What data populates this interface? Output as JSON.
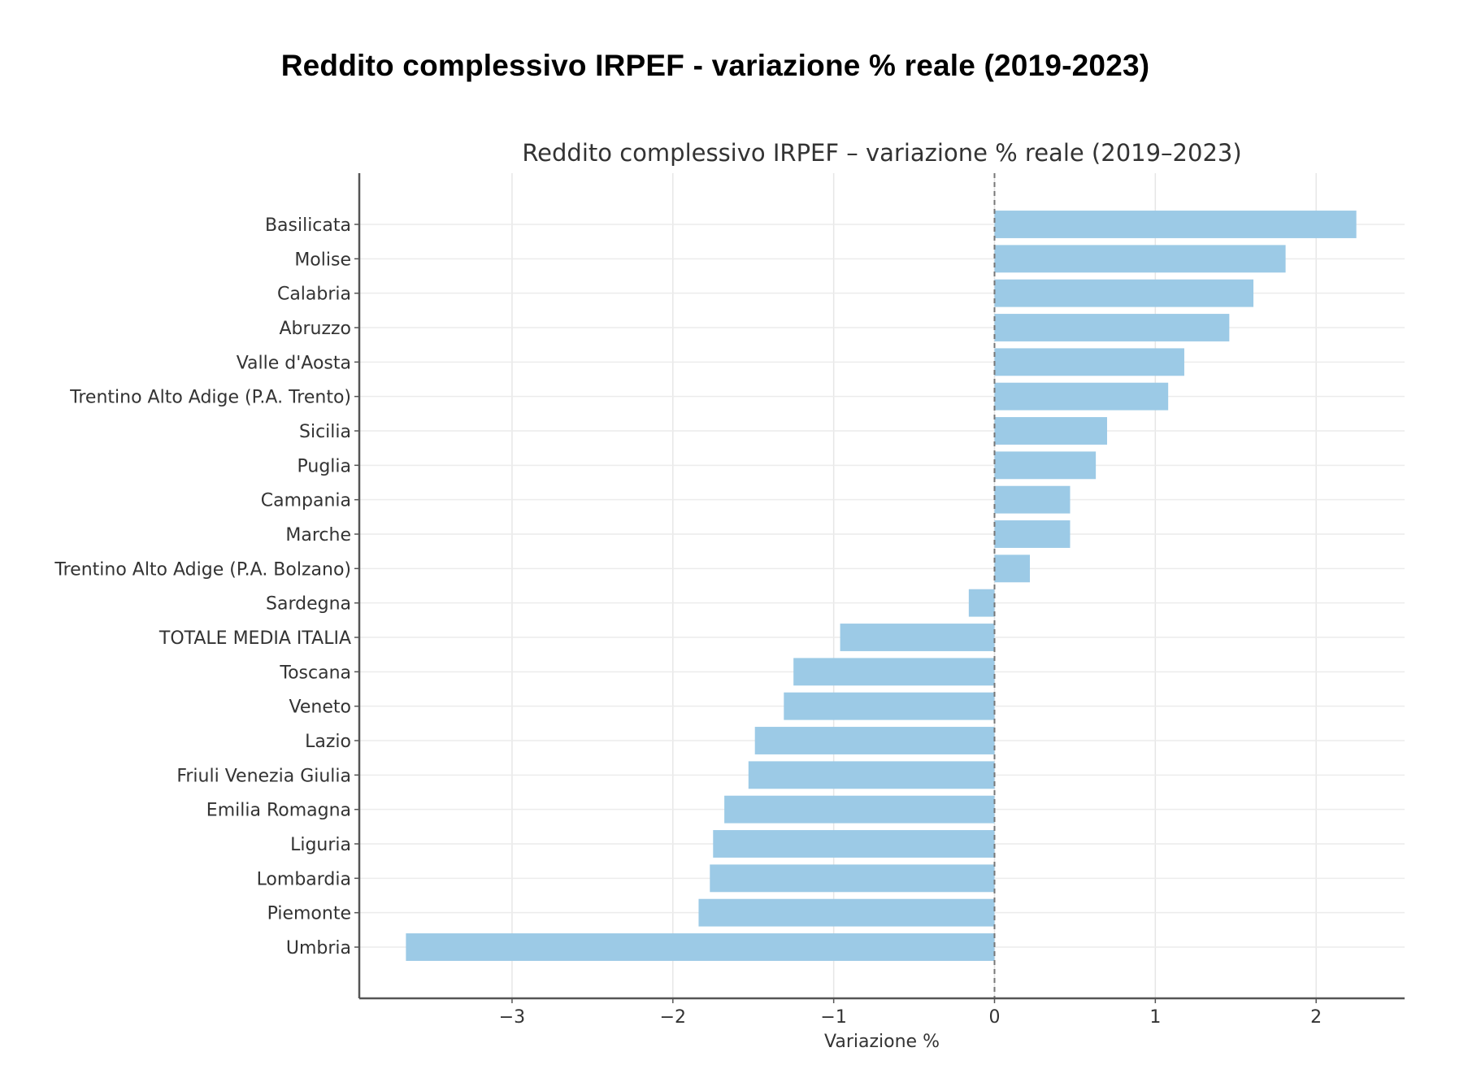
{
  "page": {
    "title": "Reddito complessivo IRPEF - variazione % reale (2019-2023)"
  },
  "chart_data": {
    "type": "bar",
    "orientation": "horizontal",
    "title": "Reddito complessivo IRPEF – variazione % reale (2019–2023)",
    "xlabel": "Variazione %",
    "ylabel": "",
    "xlim": [
      -3.95,
      2.55
    ],
    "xticks": [
      -3,
      -2,
      -1,
      0,
      1,
      2
    ],
    "xtick_labels": [
      "−3",
      "−2",
      "−1",
      "0",
      "1",
      "2"
    ],
    "grid": true,
    "zero_line": "dashed",
    "bar_color": "#9ccae6",
    "categories": [
      "Basilicata",
      "Molise",
      "Calabria",
      "Abruzzo",
      "Valle d'Aosta",
      "Trentino Alto Adige (P.A. Trento)",
      "Sicilia",
      "Puglia",
      "Campania",
      "Marche",
      "Trentino Alto Adige (P.A. Bolzano)",
      "Sardegna",
      "TOTALE MEDIA ITALIA",
      "Toscana",
      "Veneto",
      "Lazio",
      "Friuli Venezia Giulia",
      "Emilia Romagna",
      "Liguria",
      "Lombardia",
      "Piemonte",
      "Umbria"
    ],
    "values": [
      2.25,
      1.81,
      1.61,
      1.46,
      1.18,
      1.08,
      0.7,
      0.63,
      0.47,
      0.47,
      0.22,
      -0.16,
      -0.96,
      -1.25,
      -1.31,
      -1.49,
      -1.53,
      -1.68,
      -1.75,
      -1.77,
      -1.84,
      -3.66
    ]
  }
}
